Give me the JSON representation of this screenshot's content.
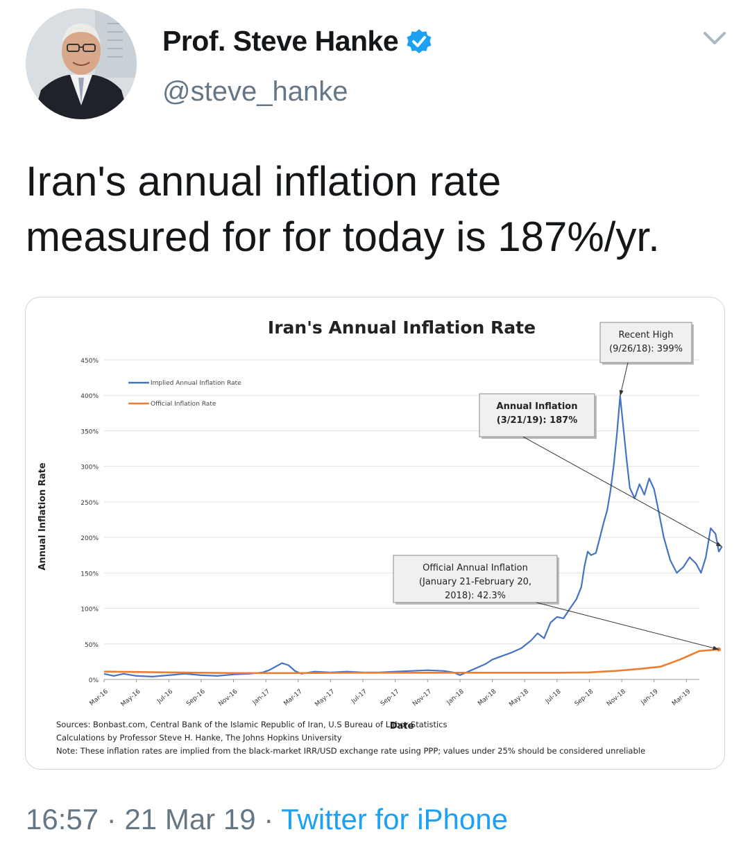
{
  "tweet": {
    "display_name": "Prof. Steve Hanke",
    "handle": "@steve_hanke",
    "verified": true,
    "text_line1": "Iran's annual inflation rate",
    "text_line2": "measured for for today is 187%/yr.",
    "time": "16:57",
    "separator": "·",
    "date": "21 Mar 19",
    "source": "Twitter for iPhone",
    "accent_color": "#1da1f2"
  },
  "icons": {
    "verified": "verified-badge-icon",
    "menu": "chevron-down-icon",
    "avatar": "profile-photo"
  },
  "chart_data": {
    "type": "line",
    "title": "Iran's Annual Inflation Rate",
    "xlabel": "Date",
    "ylabel": "Annual Inflation Rate",
    "ylim": [
      0,
      450
    ],
    "yticks": [
      "0%",
      "50%",
      "100%",
      "150%",
      "200%",
      "250%",
      "300%",
      "350%",
      "400%",
      "450%"
    ],
    "xticks": [
      "Mar-16",
      "May-16",
      "Jul-16",
      "Sep-16",
      "Nov-16",
      "Jan-17",
      "Mar-17",
      "May-17",
      "Jul-17",
      "Sep-17",
      "Nov-17",
      "Jan-18",
      "Mar-18",
      "May-18",
      "Jul-18",
      "Sep-18",
      "Nov-18",
      "Jan-19",
      "Mar-19"
    ],
    "grid": true,
    "legend_position": "top-left",
    "series": [
      {
        "name": "Implied Annual Inflation Rate",
        "color": "#4472c4",
        "points": [
          [
            0,
            8
          ],
          [
            0.3,
            5
          ],
          [
            0.6,
            8
          ],
          [
            1,
            5
          ],
          [
            1.5,
            4
          ],
          [
            2,
            6
          ],
          [
            2.5,
            8
          ],
          [
            3,
            6
          ],
          [
            3.5,
            5
          ],
          [
            4,
            7
          ],
          [
            4.5,
            8
          ],
          [
            4.9,
            10
          ],
          [
            5.1,
            13
          ],
          [
            5.3,
            18
          ],
          [
            5.5,
            23
          ],
          [
            5.7,
            20
          ],
          [
            5.9,
            12
          ],
          [
            6.1,
            8
          ],
          [
            6.5,
            11
          ],
          [
            7,
            10
          ],
          [
            7.5,
            11
          ],
          [
            8,
            10
          ],
          [
            8.5,
            10
          ],
          [
            9,
            11
          ],
          [
            9.5,
            12
          ],
          [
            10,
            13
          ],
          [
            10.5,
            12
          ],
          [
            10.8,
            10
          ],
          [
            11,
            6
          ],
          [
            11.2,
            10
          ],
          [
            11.5,
            16
          ],
          [
            11.8,
            22
          ],
          [
            12,
            28
          ],
          [
            12.3,
            33
          ],
          [
            12.6,
            38
          ],
          [
            12.9,
            44
          ],
          [
            13.2,
            55
          ],
          [
            13.4,
            65
          ],
          [
            13.6,
            58
          ],
          [
            13.8,
            80
          ],
          [
            14,
            88
          ],
          [
            14.2,
            86
          ],
          [
            14.4,
            100
          ],
          [
            14.6,
            113
          ],
          [
            14.75,
            130
          ],
          [
            14.85,
            160
          ],
          [
            14.95,
            180
          ],
          [
            15.05,
            175
          ],
          [
            15.2,
            178
          ],
          [
            15.3,
            195
          ],
          [
            15.45,
            222
          ],
          [
            15.55,
            238
          ],
          [
            15.65,
            265
          ],
          [
            15.75,
            300
          ],
          [
            15.85,
            345
          ],
          [
            15.95,
            399
          ],
          [
            16.05,
            355
          ],
          [
            16.15,
            310
          ],
          [
            16.25,
            270
          ],
          [
            16.4,
            255
          ],
          [
            16.55,
            275
          ],
          [
            16.7,
            260
          ],
          [
            16.85,
            283
          ],
          [
            17.0,
            268
          ],
          [
            17.15,
            235
          ],
          [
            17.3,
            200
          ],
          [
            17.5,
            168
          ],
          [
            17.7,
            150
          ],
          [
            17.9,
            158
          ],
          [
            18.1,
            172
          ],
          [
            18.3,
            163
          ],
          [
            18.45,
            150
          ],
          [
            18.6,
            172
          ],
          [
            18.75,
            213
          ],
          [
            18.9,
            205
          ],
          [
            19.0,
            180
          ],
          [
            19.1,
            187
          ]
        ]
      },
      {
        "name": "Official Inflation Rate",
        "color": "#ed7d31",
        "points": [
          [
            0,
            11
          ],
          [
            2,
            10
          ],
          [
            4,
            9
          ],
          [
            6,
            9
          ],
          [
            8,
            9.5
          ],
          [
            10,
            9.5
          ],
          [
            12,
            9.5
          ],
          [
            14,
            9.5
          ],
          [
            15,
            10
          ],
          [
            15.8,
            12
          ],
          [
            16.6,
            15
          ],
          [
            17.2,
            18
          ],
          [
            17.8,
            28
          ],
          [
            18.4,
            40
          ],
          [
            19.0,
            42.3
          ]
        ]
      }
    ],
    "annotations": [
      {
        "label_line1": "Recent High",
        "label_line2": "(9/26/18): 399%",
        "point": [
          15.95,
          399
        ]
      },
      {
        "label_line1": "Annual Inflation",
        "label_line2": "(3/21/19): 187%",
        "point": [
          19.1,
          187
        ]
      },
      {
        "label_line1": "Official Annual Inflation",
        "label_line2": "(January 21-February 20,",
        "label_line3": "2018): 42.3%",
        "point": [
          19.0,
          42.3
        ]
      }
    ],
    "notes": [
      "Sources: Bonbast.com, Central Bank of the Islamic Republic of Iran, U.S Bureau of Labor Statistics",
      "Calculations by Professor Steve H. Hanke, The Johns Hopkins University",
      "Note: These inflation rates are implied from the black-market IRR/USD exchange rate using PPP; values under 25% should be considered unreliable"
    ]
  }
}
